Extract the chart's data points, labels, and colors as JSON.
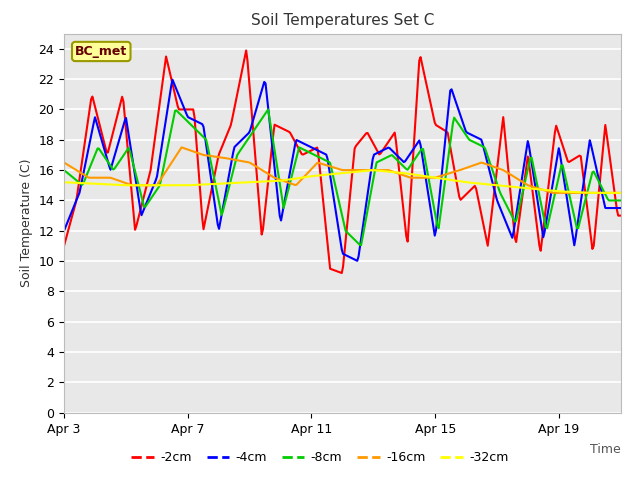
{
  "title": "Soil Temperatures Set C",
  "xlabel": "Time",
  "ylabel": "Soil Temperature (C)",
  "ylim": [
    0,
    25
  ],
  "yticks": [
    0,
    2,
    4,
    6,
    8,
    10,
    12,
    14,
    16,
    18,
    20,
    22,
    24
  ],
  "bg_color": "#e8e8e8",
  "grid_color": "#ffffff",
  "annotation_text": "BC_met",
  "annotation_bg": "#ffff99",
  "annotation_border": "#999900",
  "annotation_text_color": "#660000",
  "legend_entries": [
    "-2cm",
    "-4cm",
    "-8cm",
    "-16cm",
    "-32cm"
  ],
  "line_colors": [
    "#ff0000",
    "#0000ff",
    "#00cc00",
    "#ff9900",
    "#ffff00"
  ],
  "line_width": 1.5,
  "x_start_day": 3,
  "n_days": 18,
  "xtick_labels": [
    "Apr 3",
    "Apr 7",
    "Apr 11",
    "Apr 15",
    "Apr 19"
  ],
  "xtick_positions": [
    3,
    7,
    11,
    15,
    19
  ],
  "key_t_2": [
    0,
    0.4,
    0.9,
    1.4,
    1.9,
    2.3,
    2.8,
    3.3,
    3.7,
    4.2,
    4.5,
    5.0,
    5.4,
    5.9,
    6.4,
    6.8,
    7.3,
    7.7,
    8.2,
    8.6,
    9.0,
    9.4,
    9.8,
    10.2,
    10.7,
    11.1,
    11.5,
    12.0,
    12.4,
    12.8,
    13.3,
    13.7,
    14.2,
    14.6,
    15.0,
    15.4,
    15.9,
    16.3,
    16.7,
    17.1,
    17.5,
    17.9,
    18.0
  ],
  "key_v_2": [
    11,
    14,
    21,
    17,
    21,
    12,
    16,
    23.5,
    20,
    20,
    12,
    17,
    19,
    24,
    11.5,
    19,
    18.5,
    17,
    17.5,
    9.5,
    9.2,
    17.5,
    18.5,
    17,
    18.5,
    11,
    23.7,
    19,
    18.5,
    14,
    15,
    11,
    19.5,
    11,
    17,
    10.5,
    19,
    16.5,
    17,
    10.5,
    19,
    13,
    13
  ],
  "key_t_4": [
    0,
    0.5,
    1.0,
    1.5,
    2.0,
    2.5,
    3.0,
    3.5,
    4.0,
    4.5,
    5.0,
    5.5,
    6.0,
    6.5,
    7.0,
    7.5,
    8.0,
    8.5,
    9.0,
    9.5,
    10.0,
    10.5,
    11.0,
    11.5,
    12.0,
    12.5,
    13.0,
    13.5,
    14.0,
    14.5,
    15.0,
    15.5,
    16.0,
    16.5,
    17.0,
    17.5,
    18.0
  ],
  "key_v_4": [
    12,
    14.5,
    19.5,
    16,
    19.5,
    13,
    15.5,
    22,
    19.5,
    19,
    12,
    17.5,
    18.5,
    22,
    12.5,
    18,
    17.5,
    17,
    10.5,
    10,
    17,
    17.5,
    16.5,
    18,
    11.5,
    21.5,
    18.5,
    18,
    14,
    11.5,
    18,
    11.5,
    17.5,
    11,
    18,
    13.5,
    13.5
  ],
  "key_t_8": [
    0,
    0.6,
    1.1,
    1.6,
    2.1,
    2.6,
    3.1,
    3.6,
    4.1,
    4.6,
    5.1,
    5.6,
    6.1,
    6.6,
    7.1,
    7.6,
    8.1,
    8.6,
    9.1,
    9.6,
    10.1,
    10.6,
    11.1,
    11.6,
    12.1,
    12.6,
    13.1,
    13.6,
    14.1,
    14.6,
    15.1,
    15.6,
    16.1,
    16.6,
    17.1,
    17.6,
    18.0
  ],
  "key_v_8": [
    16,
    15,
    17.5,
    16,
    17.5,
    13.5,
    15,
    20,
    19,
    18,
    13,
    17,
    18.5,
    20,
    13.5,
    17.5,
    17,
    16.5,
    12,
    11,
    16.5,
    17,
    16,
    17.5,
    12,
    19.5,
    18,
    17.5,
    14.5,
    12.5,
    17,
    12,
    16.5,
    12,
    16,
    14,
    14
  ],
  "key_t_16": [
    0,
    0.8,
    1.5,
    2.2,
    3.0,
    3.8,
    4.5,
    5.2,
    6.0,
    6.8,
    7.5,
    8.2,
    9.0,
    9.8,
    10.5,
    11.2,
    12.0,
    12.8,
    13.5,
    14.2,
    15.0,
    15.8,
    16.5,
    17.2,
    18.0
  ],
  "key_v_16": [
    16.5,
    15.5,
    15.5,
    15.0,
    15.0,
    17.5,
    17.0,
    16.8,
    16.5,
    15.5,
    15.0,
    16.5,
    16.0,
    16.0,
    16.0,
    15.5,
    15.5,
    16.0,
    16.5,
    16.0,
    15.0,
    14.5,
    14.5,
    14.5,
    14.5
  ],
  "key_t_32": [
    0,
    1,
    2,
    3,
    4,
    5,
    6,
    7,
    8,
    9,
    10,
    11,
    12,
    13,
    14,
    15,
    16,
    17,
    18
  ],
  "key_v_32": [
    15.2,
    15.1,
    15.0,
    15.0,
    15.0,
    15.1,
    15.2,
    15.3,
    15.6,
    15.8,
    16.0,
    15.8,
    15.5,
    15.2,
    15.0,
    14.8,
    14.6,
    14.5,
    14.5
  ]
}
